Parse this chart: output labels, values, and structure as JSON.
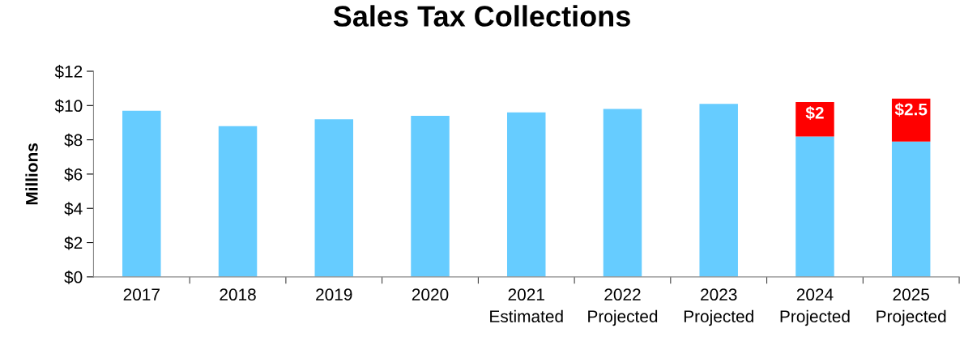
{
  "chart_data": {
    "type": "bar",
    "title": "Sales Tax Collections",
    "ylabel": "Millions",
    "categories": [
      "2017",
      "2018",
      "2019",
      "2020",
      "2021\nEstimated",
      "2022\nProjected",
      "2023\nProjected",
      "2024\nProjected",
      "2025\nProjected"
    ],
    "stacked": true,
    "series": [
      {
        "color": "#66ccff",
        "values": [
          9.7,
          8.8,
          9.2,
          9.4,
          9.6,
          9.8,
          10.1,
          8.2,
          7.9
        ]
      },
      {
        "color": "#ff0000",
        "values": [
          null,
          null,
          null,
          null,
          null,
          null,
          null,
          2,
          2.5
        ],
        "value_labels": [
          null,
          null,
          null,
          null,
          null,
          null,
          null,
          "$2",
          "$2.5"
        ]
      }
    ],
    "ylim": [
      0,
      12
    ],
    "yticks": [
      {
        "value": 0,
        "label": "$0"
      },
      {
        "value": 2,
        "label": "$2"
      },
      {
        "value": 4,
        "label": "$4"
      },
      {
        "value": 6,
        "label": "$6"
      },
      {
        "value": 8,
        "label": "$8"
      },
      {
        "value": 10,
        "label": "$10"
      },
      {
        "value": 12,
        "label": "$12"
      }
    ],
    "grid": false,
    "legend": false
  }
}
